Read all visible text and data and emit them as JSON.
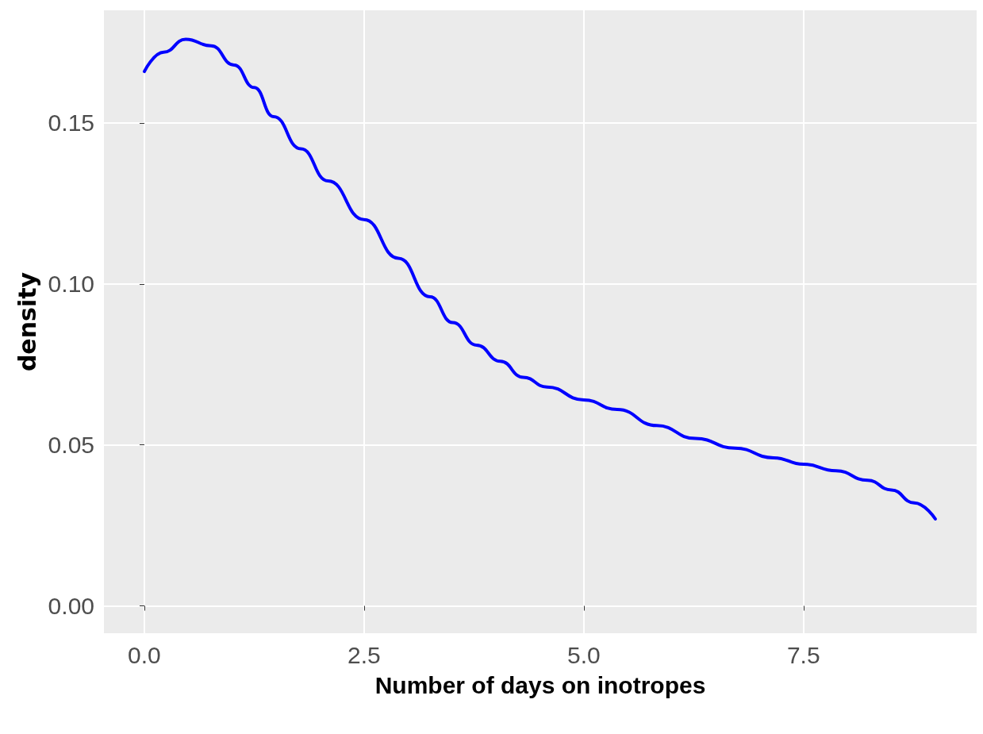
{
  "chart_data": {
    "type": "line",
    "xlabel": "Number of days on inotropes",
    "ylabel": "density",
    "x": [
      0,
      0.22,
      0.47,
      0.76,
      1.02,
      1.25,
      1.47,
      1.78,
      2.09,
      2.5,
      2.89,
      3.25,
      3.51,
      3.78,
      4.05,
      4.31,
      4.58,
      5.0,
      5.38,
      5.83,
      6.27,
      6.72,
      7.16,
      7.5,
      7.87,
      8.23,
      8.5,
      8.76,
      9.0
    ],
    "series": [
      {
        "color": "#0000ff",
        "values": [
          0.166,
          0.172,
          0.176,
          0.174,
          0.168,
          0.161,
          0.152,
          0.142,
          0.132,
          0.12,
          0.108,
          0.096,
          0.088,
          0.081,
          0.076,
          0.071,
          0.068,
          0.064,
          0.061,
          0.056,
          0.052,
          0.049,
          0.046,
          0.044,
          0.042,
          0.039,
          0.036,
          0.032,
          0.027
        ]
      }
    ],
    "xlim": [
      -0.46,
      9.47
    ],
    "ylim": [
      -0.0085,
      0.185
    ],
    "xticks": [
      {
        "value": 0,
        "label": "0.0"
      },
      {
        "value": 2.5,
        "label": "2.5"
      },
      {
        "value": 5,
        "label": "5.0"
      },
      {
        "value": 7.5,
        "label": "7.5"
      }
    ],
    "yticks": [
      {
        "value": 0,
        "label": "0.00"
      },
      {
        "value": 0.05,
        "label": "0.05"
      },
      {
        "value": 0.1,
        "label": "0.10"
      },
      {
        "value": 0.15,
        "label": "0.15"
      }
    ],
    "grid": true,
    "marker": "none",
    "line_style": "solid"
  }
}
